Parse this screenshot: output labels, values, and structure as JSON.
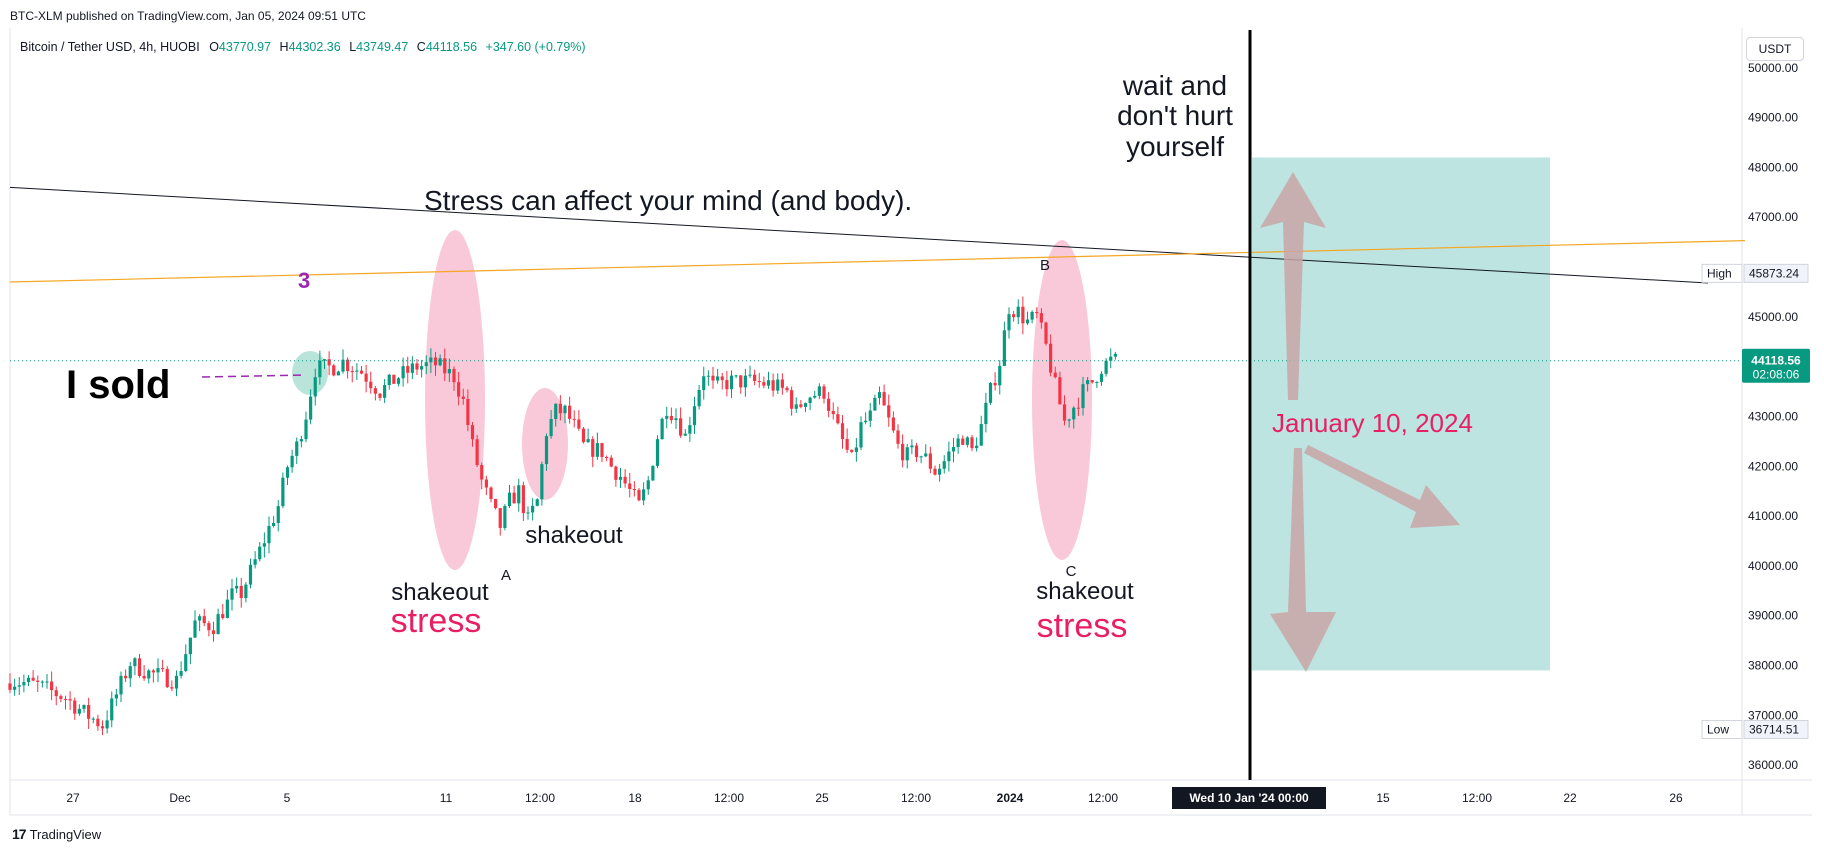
{
  "attribution": "BTC-XLM published on TradingView.com, Jan 05, 2024 09:51 UTC",
  "legend": {
    "symbol": "Bitcoin / Tether USD, 4h, HUOBI",
    "open_label": "O",
    "open": "43770.97",
    "high_label": "H",
    "high": "44302.36",
    "low_label": "L",
    "low": "43749.47",
    "close_label": "C",
    "close": "44118.56",
    "change": "+347.60 (+0.79%)"
  },
  "currency": "USDT",
  "brand": "TradingView",
  "colors": {
    "up": "#089981",
    "down": "#f23645",
    "stress": "#e91e63",
    "ellipse": "#f8bbd0",
    "projection_box": "#b2dfdb",
    "trendline_orange": "#f5a623",
    "purple": "#9c27b0"
  },
  "chart_data": {
    "type": "candlestick",
    "interval": "4h",
    "ylim": [
      35700,
      50800
    ],
    "y_ticks": [
      36000,
      37000,
      38000,
      39000,
      40000,
      41000,
      42000,
      43000,
      44000,
      45000,
      46000,
      47000,
      48000,
      49000,
      50000
    ],
    "y_tick_labels": [
      "36000.00",
      "37000.00",
      "38000.00",
      "39000.00",
      "40000.00",
      "41000.00",
      "42000.00",
      "43000.00",
      "44000.00",
      "45000.00",
      "46000.00",
      "47000.00",
      "48000.00",
      "49000.00",
      "50000.00"
    ],
    "x_ticks": [
      "27",
      "Dec",
      "5",
      "11",
      "12:00",
      "18",
      "12:00",
      "25",
      "12:00",
      "2024",
      "12:00",
      "15",
      "12:00",
      "22",
      "26"
    ],
    "cursor_label": "Wed 10 Jan '24   00:00",
    "last_price": "44118.56",
    "countdown": "02:08:06",
    "high_marker": {
      "label": "High",
      "value": "45873.24"
    },
    "low_marker": {
      "label": "Low",
      "value": "36714.51"
    },
    "price_path": [
      [
        0,
        37700
      ],
      [
        3,
        37600
      ],
      [
        6,
        37350
      ],
      [
        8,
        37050
      ],
      [
        10,
        36800
      ],
      [
        11,
        37200
      ],
      [
        13,
        38050
      ],
      [
        15,
        37850
      ],
      [
        18,
        37700
      ],
      [
        20,
        38850
      ],
      [
        22,
        38800
      ],
      [
        24,
        39400
      ],
      [
        25,
        39450
      ],
      [
        27,
        40300
      ],
      [
        29,
        41200
      ],
      [
        30,
        42000
      ],
      [
        31,
        42400
      ],
      [
        32,
        43050
      ],
      [
        33,
        43950
      ],
      [
        35,
        44000
      ],
      [
        36,
        44100
      ],
      [
        38,
        43900
      ],
      [
        40,
        43500
      ],
      [
        42,
        43800
      ],
      [
        44,
        44000
      ],
      [
        46,
        44050
      ],
      [
        48,
        43800
      ],
      [
        49,
        43300
      ],
      [
        50,
        42400
      ],
      [
        51,
        41700
      ],
      [
        52,
        41200
      ],
      [
        53,
        40800
      ],
      [
        54,
        41300
      ],
      [
        55,
        41500
      ],
      [
        56,
        40900
      ],
      [
        57,
        41300
      ],
      [
        58,
        42700
      ],
      [
        59,
        43100
      ],
      [
        60,
        43100
      ],
      [
        61,
        42800
      ],
      [
        62,
        42400
      ],
      [
        64,
        42300
      ],
      [
        65,
        42000
      ],
      [
        66,
        41800
      ],
      [
        67,
        41500
      ],
      [
        68,
        41200
      ],
      [
        69,
        41700
      ],
      [
        70,
        42600
      ],
      [
        71,
        43200
      ],
      [
        72,
        43000
      ],
      [
        73,
        42600
      ],
      [
        74,
        43300
      ],
      [
        75,
        43900
      ],
      [
        76,
        43600
      ],
      [
        78,
        43700
      ],
      [
        80,
        43700
      ],
      [
        82,
        43650
      ],
      [
        84,
        43500
      ],
      [
        85,
        43100
      ],
      [
        86,
        43400
      ],
      [
        88,
        43500
      ],
      [
        89,
        42950
      ],
      [
        90,
        42500
      ],
      [
        91,
        42100
      ],
      [
        92,
        42800
      ],
      [
        93,
        43000
      ],
      [
        94,
        43400
      ],
      [
        95,
        42900
      ],
      [
        96,
        42400
      ],
      [
        97,
        42200
      ],
      [
        98,
        42300
      ],
      [
        99,
        42150
      ],
      [
        100,
        41900
      ],
      [
        101,
        42100
      ],
      [
        102,
        42400
      ],
      [
        103,
        42600
      ],
      [
        104,
        42300
      ],
      [
        105,
        42800
      ],
      [
        106,
        43500
      ],
      [
        107,
        44100
      ],
      [
        108,
        45200
      ],
      [
        109,
        45100
      ],
      [
        110,
        44900
      ],
      [
        111,
        45000
      ],
      [
        112,
        44400
      ],
      [
        113,
        43600
      ],
      [
        114,
        42900
      ],
      [
        115,
        43200
      ],
      [
        116,
        43500
      ],
      [
        117,
        43700
      ],
      [
        118,
        44000
      ],
      [
        119,
        44118.56
      ]
    ],
    "price_path_note": "",
    "trendlines": [
      {
        "name": "",
        "points": [
          [
            0,
            47600
          ],
          [
            176,
            45680
          ]
        ]
      },
      {
        "name": "",
        "points": [
          [
            0,
            45700
          ],
          [
            180,
            46530
          ]
        ]
      }
    ],
    "projection_box": {
      "y_range": [
        37900,
        48200
      ]
    },
    "annotations": {
      "title": "Stress can affect your mind (and body).",
      "wait": [
        "wait and",
        "don't hurt",
        "yourself"
      ],
      "i_sold": "I sold",
      "wave_3": "3",
      "wave_a": "A",
      "wave_b": "B",
      "wave_c": "C",
      "shakeout_1": "shakeout",
      "shakeout_2": "shakeout",
      "shakeout_3": "shakeout",
      "stress_1": "stress",
      "stress_2": "stress",
      "date_label": "January 10, 2024"
    }
  }
}
